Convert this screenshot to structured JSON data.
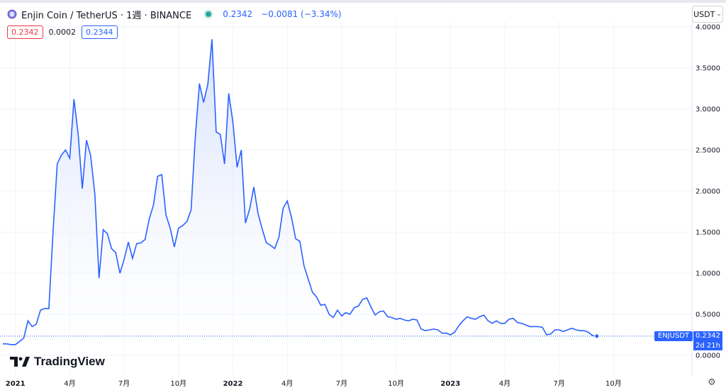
{
  "header": {
    "title": "Enjin Coin / TetherUS · 1週 · BINANCE",
    "price": "0.2342",
    "change": "−0.0081 (−3.34%)",
    "coin_icon": "enjin-coin-icon"
  },
  "quotes": {
    "bid": "0.2342",
    "spread": "0.0002",
    "ask": "0.2344"
  },
  "currency_selector": {
    "label": "USDT"
  },
  "brand": {
    "text": "TradingView"
  },
  "price_labels": {
    "symbol": "ENJUSDT",
    "value": "0.2342",
    "countdown": "2d 21h"
  },
  "colors": {
    "line": "#2962ff",
    "area_top": "#c9d6fb",
    "bid": "#f23645",
    "status": "#26a69a"
  },
  "chart_data": {
    "type": "area",
    "y_ticks": [
      "0.0000",
      "0.5000",
      "1.0000",
      "1.5000",
      "2.0000",
      "2.5000",
      "3.0000",
      "3.5000",
      "4.0000"
    ],
    "ylim": [
      0,
      4.0
    ],
    "x_ticks": [
      {
        "label": "2021",
        "bold": true,
        "index": 3
      },
      {
        "label": "4月",
        "bold": false,
        "index": 16
      },
      {
        "label": "7月",
        "bold": false,
        "index": 29
      },
      {
        "label": "10月",
        "bold": false,
        "index": 42
      },
      {
        "label": "2022",
        "bold": true,
        "index": 55
      },
      {
        "label": "4月",
        "bold": false,
        "index": 68
      },
      {
        "label": "7月",
        "bold": false,
        "index": 81
      },
      {
        "label": "10月",
        "bold": false,
        "index": 94
      },
      {
        "label": "2023",
        "bold": true,
        "index": 107
      },
      {
        "label": "4月",
        "bold": false,
        "index": 120
      },
      {
        "label": "7月",
        "bold": false,
        "index": 133
      },
      {
        "label": "10月",
        "bold": false,
        "index": 146
      }
    ],
    "last_value": 0.2342,
    "grid": true,
    "series": [
      {
        "values": [
          0.14,
          0.14,
          0.13,
          0.13,
          0.17,
          0.21,
          0.42,
          0.35,
          0.38,
          0.55,
          0.57,
          0.57,
          1.5,
          2.33,
          2.44,
          2.5,
          2.4,
          3.12,
          2.7,
          2.03,
          2.62,
          2.43,
          1.96,
          0.94,
          1.53,
          1.48,
          1.3,
          1.25,
          1.0,
          1.17,
          1.38,
          1.18,
          1.36,
          1.37,
          1.41,
          1.66,
          1.83,
          2.18,
          2.2,
          1.71,
          1.55,
          1.32,
          1.55,
          1.58,
          1.63,
          1.77,
          2.65,
          3.31,
          3.08,
          3.3,
          3.85,
          2.72,
          2.69,
          2.33,
          3.19,
          2.84,
          2.29,
          2.5,
          1.61,
          1.78,
          2.05,
          1.73,
          1.54,
          1.37,
          1.34,
          1.3,
          1.44,
          1.79,
          1.88,
          1.68,
          1.42,
          1.39,
          1.09,
          0.93,
          0.77,
          0.71,
          0.61,
          0.62,
          0.5,
          0.46,
          0.55,
          0.48,
          0.52,
          0.5,
          0.58,
          0.6,
          0.68,
          0.7,
          0.59,
          0.49,
          0.53,
          0.54,
          0.47,
          0.46,
          0.44,
          0.45,
          0.43,
          0.42,
          0.44,
          0.43,
          0.32,
          0.3,
          0.31,
          0.32,
          0.31,
          0.27,
          0.27,
          0.25,
          0.28,
          0.36,
          0.42,
          0.47,
          0.45,
          0.44,
          0.47,
          0.49,
          0.42,
          0.39,
          0.42,
          0.39,
          0.39,
          0.44,
          0.45,
          0.4,
          0.39,
          0.37,
          0.35,
          0.35,
          0.35,
          0.34,
          0.25,
          0.26,
          0.31,
          0.31,
          0.29,
          0.31,
          0.33,
          0.31,
          0.3,
          0.3,
          0.28,
          0.24,
          0.2342
        ]
      }
    ]
  }
}
